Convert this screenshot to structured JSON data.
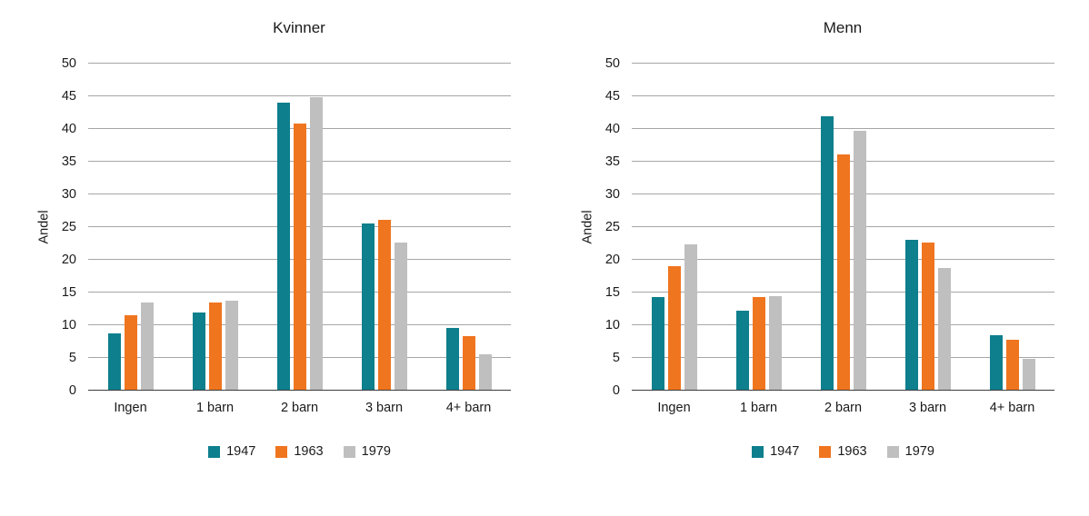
{
  "page": {
    "background": "#ffffff",
    "text_color": "#1a1a1a",
    "gridline_color": "#a6a6a6",
    "axis_color": "#3d3d3d"
  },
  "chart_data": [
    {
      "type": "bar",
      "title": "Kvinner",
      "xlabel": "",
      "ylabel": "Andel",
      "ylim": [
        0,
        50
      ],
      "ytick_step": 5,
      "grid": true,
      "legend_position": "bottom",
      "categories": [
        "Ingen",
        "1 barn",
        "2 barn",
        "3 barn",
        "4+ barn"
      ],
      "series": [
        {
          "name": "1947",
          "color": "#0e7f8c",
          "values": [
            8.8,
            12.0,
            44.0,
            25.5,
            9.6
          ]
        },
        {
          "name": "1963",
          "color": "#f0751f",
          "values": [
            11.5,
            13.5,
            40.8,
            26.1,
            8.3
          ]
        },
        {
          "name": "1979",
          "color": "#bfbfbf",
          "values": [
            13.5,
            13.8,
            44.8,
            22.7,
            5.5
          ]
        }
      ]
    },
    {
      "type": "bar",
      "title": "Menn",
      "xlabel": "",
      "ylabel": "Andel",
      "ylim": [
        0,
        50
      ],
      "ytick_step": 5,
      "grid": true,
      "legend_position": "bottom",
      "categories": [
        "Ingen",
        "1 barn",
        "2 barn",
        "3 barn",
        "4+ barn"
      ],
      "series": [
        {
          "name": "1947",
          "color": "#0e7f8c",
          "values": [
            14.3,
            12.2,
            42.0,
            23.0,
            8.5
          ]
        },
        {
          "name": "1963",
          "color": "#f0751f",
          "values": [
            19.0,
            14.3,
            36.1,
            22.6,
            7.8
          ]
        },
        {
          "name": "1979",
          "color": "#bfbfbf",
          "values": [
            22.4,
            14.5,
            39.7,
            18.7,
            4.9
          ]
        }
      ]
    }
  ]
}
